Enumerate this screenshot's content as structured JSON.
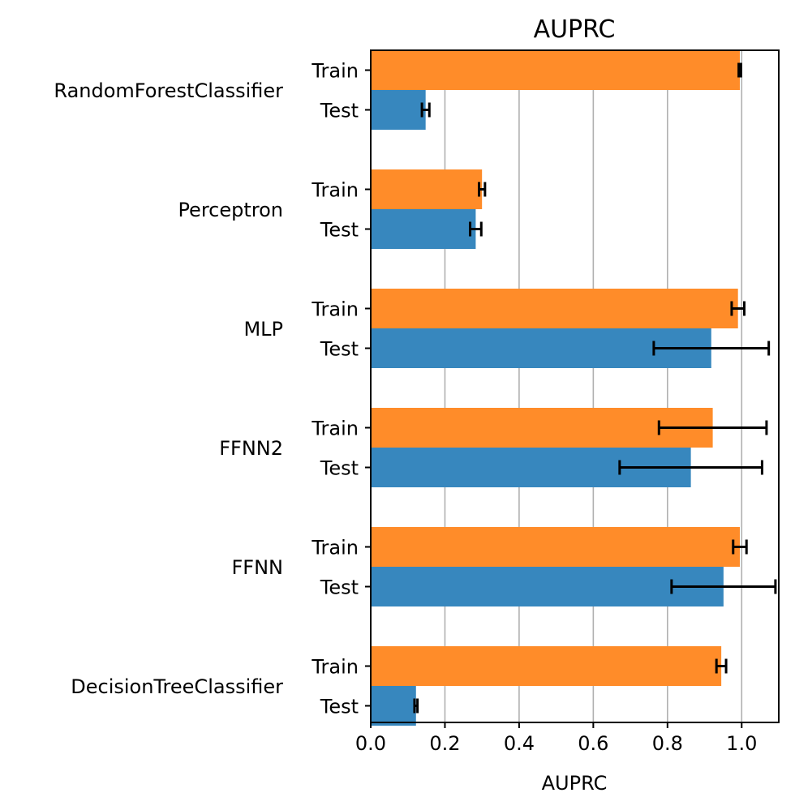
{
  "chart_data": {
    "type": "bar",
    "orientation": "horizontal",
    "title": "AUPRC",
    "xlabel": "AUPRC",
    "xlim": [
      0,
      1.1
    ],
    "xticks": [
      "0.0",
      "0.2",
      "0.4",
      "0.6",
      "0.8",
      "1.0"
    ],
    "grid": "vertical",
    "categories": [
      "RandomForestClassifier",
      "Perceptron",
      "MLP",
      "FFNN2",
      "FFNN",
      "DecisionTreeClassifier"
    ],
    "split_labels": {
      "train": "Train",
      "test": "Test"
    },
    "series": [
      {
        "name": "Train",
        "color": "#ff8c29",
        "values": [
          0.995,
          0.3,
          0.99,
          0.922,
          0.995,
          0.945
        ],
        "errors": [
          0.003,
          0.008,
          0.017,
          0.145,
          0.018,
          0.013
        ]
      },
      {
        "name": "Test",
        "color": "#3787be",
        "values": [
          0.148,
          0.283,
          0.918,
          0.863,
          0.951,
          0.122
        ],
        "errors": [
          0.01,
          0.015,
          0.155,
          0.192,
          0.14,
          0.004
        ]
      }
    ]
  }
}
